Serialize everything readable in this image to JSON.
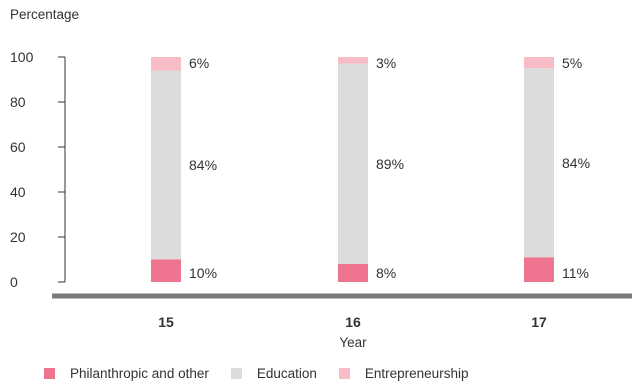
{
  "chart_data": {
    "type": "bar",
    "stacked": true,
    "ylabel": "Percentage",
    "xlabel": "Year",
    "ylim": [
      0,
      100
    ],
    "yticks": [
      0,
      20,
      40,
      60,
      80,
      100
    ],
    "categories": [
      "15",
      "16",
      "17"
    ],
    "series": [
      {
        "name": "Philanthropic and other",
        "values": [
          10,
          8,
          11
        ],
        "labels": [
          "10%",
          "8%",
          "11%"
        ],
        "color": "#ef7490"
      },
      {
        "name": "Education",
        "values": [
          84,
          89,
          84
        ],
        "labels": [
          "84%",
          "89%",
          "84%"
        ],
        "color": "#dcdcdc"
      },
      {
        "name": "Entrepreneurship",
        "values": [
          6,
          3,
          5
        ],
        "labels": [
          "6%",
          "3%",
          "5%"
        ],
        "color": "#f7bcc6"
      }
    ],
    "legend_position": "bottom",
    "grid": false
  }
}
